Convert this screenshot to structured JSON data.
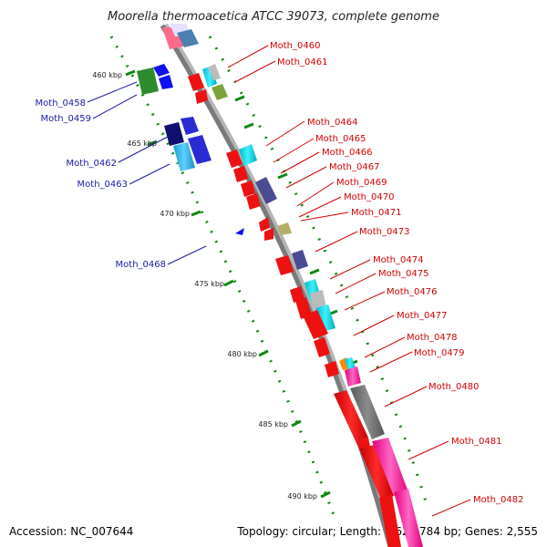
{
  "title": "Moorella thermoacetica ATCC 39073, complete genome",
  "footer": {
    "accession": "Accession: NC_007644",
    "topology": "Topology: circular; Length: 2,628,784 bp; Genes: 2,555"
  },
  "ticks": [
    "460 kbp",
    "465 kbp",
    "470 kbp",
    "475 kbp",
    "480 kbp",
    "485 kbp",
    "490 kbp"
  ],
  "labels_right": [
    "Moth_0460",
    "Moth_0461",
    "Moth_0464",
    "Moth_0465",
    "Moth_0466",
    "Moth_0467",
    "Moth_0469",
    "Moth_0470",
    "Moth_0471",
    "Moth_0473",
    "Moth_0474",
    "Moth_0475",
    "Moth_0476",
    "Moth_0477",
    "Moth_0478",
    "Moth_0479",
    "Moth_0480",
    "Moth_0481",
    "Moth_0482"
  ],
  "labels_left": [
    "Moth_0458",
    "Moth_0459",
    "Moth_0462",
    "Moth_0463",
    "Moth_0468"
  ],
  "colors": {
    "cds": "#ee1111",
    "trna": "#00cccc",
    "rrna": "#ff1a9c",
    "backbone": "#8a8a8a",
    "tick_dots": "#118811",
    "label_red": "#d40000",
    "label_blue": "#1a1aa8"
  }
}
